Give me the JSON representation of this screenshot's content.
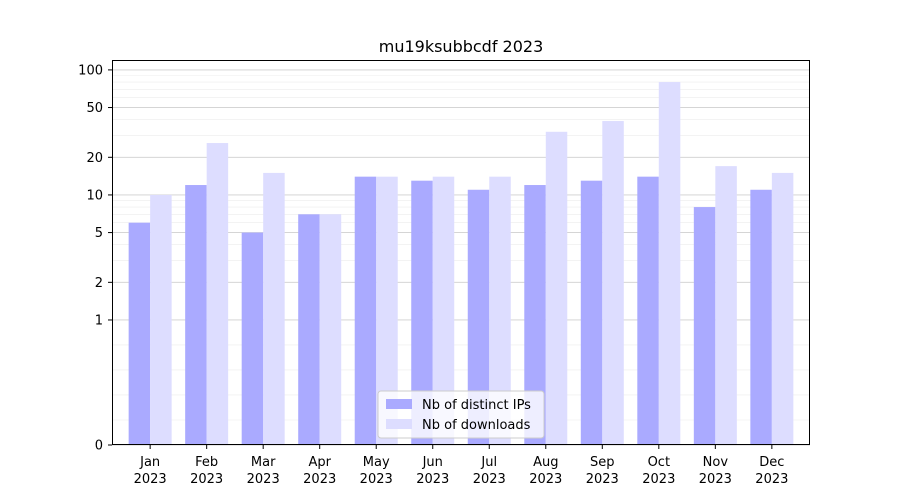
{
  "chart_data": {
    "type": "bar",
    "title": "mu19ksubbcdf 2023",
    "xlabel": "",
    "ylabel": "",
    "yscale": "symlog",
    "ylim": [
      0,
      120
    ],
    "yticks": [
      0,
      1,
      2,
      5,
      10,
      20,
      50,
      100
    ],
    "categories": [
      [
        "Jan",
        "2023"
      ],
      [
        "Feb",
        "2023"
      ],
      [
        "Mar",
        "2023"
      ],
      [
        "Apr",
        "2023"
      ],
      [
        "May",
        "2023"
      ],
      [
        "Jun",
        "2023"
      ],
      [
        "Jul",
        "2023"
      ],
      [
        "Aug",
        "2023"
      ],
      [
        "Sep",
        "2023"
      ],
      [
        "Oct",
        "2023"
      ],
      [
        "Nov",
        "2023"
      ],
      [
        "Dec",
        "2023"
      ]
    ],
    "series": [
      {
        "name": "Nb of distinct IPs",
        "color": "#aaaaff",
        "values": [
          6,
          12,
          5,
          7,
          14,
          13,
          11,
          12,
          13,
          14,
          8,
          11
        ]
      },
      {
        "name": "Nb of downloads",
        "color": "#ddddff",
        "values": [
          10,
          26,
          15,
          7,
          14,
          14,
          14,
          32,
          39,
          80,
          17,
          15
        ]
      }
    ],
    "grid": true,
    "legend_position": "bottom-center"
  }
}
